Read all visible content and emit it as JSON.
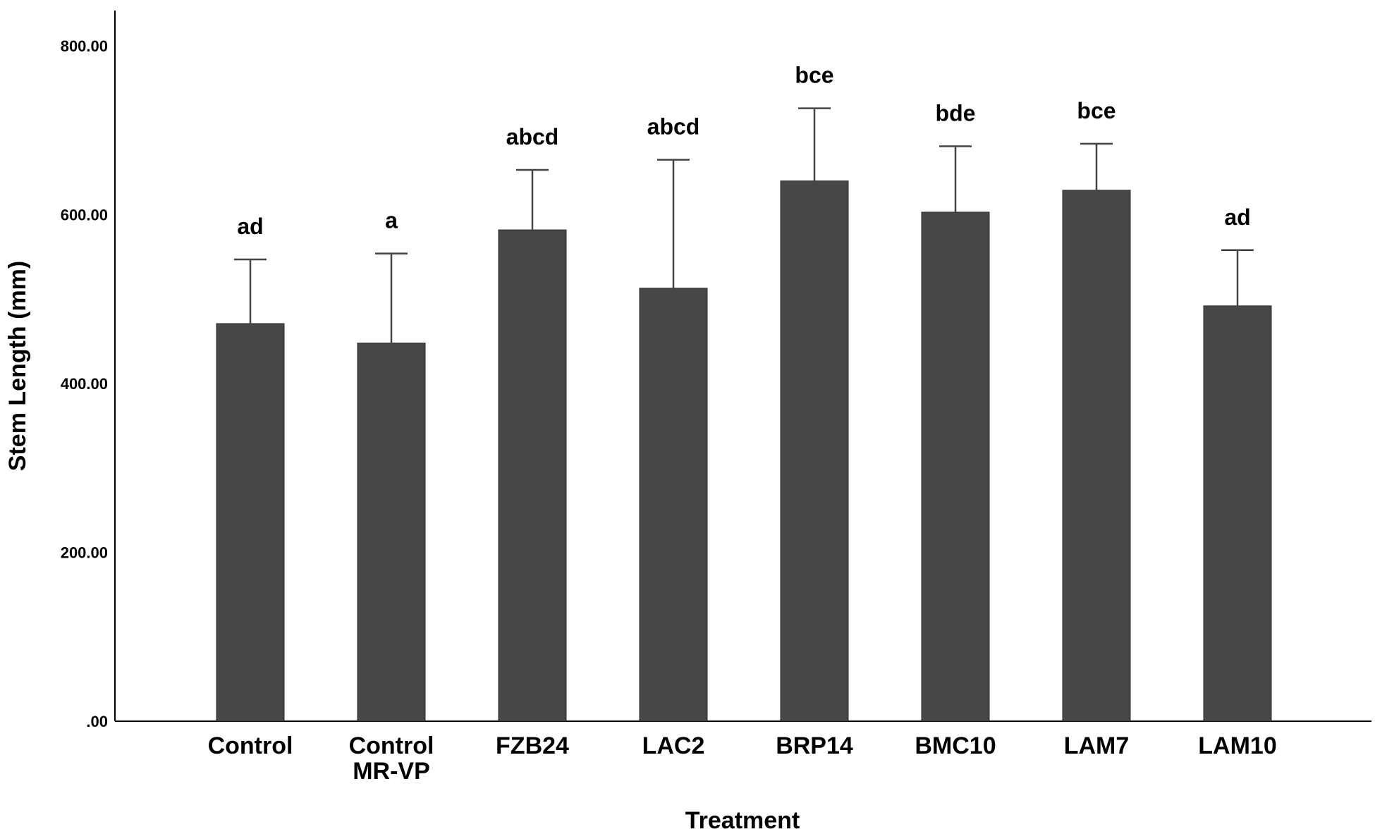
{
  "chart_data": {
    "type": "bar",
    "xlabel": "Treatment",
    "ylabel": "Stem Length (mm)",
    "ylim": [
      0,
      800
    ],
    "yticks": [
      ".00",
      "200.00",
      "400.00",
      "600.00",
      "800.00"
    ],
    "ytick_values": [
      0,
      200,
      400,
      600,
      800
    ],
    "grid": false,
    "bar_color": "#464749",
    "categories": [
      [
        "Control"
      ],
      [
        "Control",
        "MR-VP"
      ],
      [
        "FZB24"
      ],
      [
        "LAC2"
      ],
      [
        "BRP14"
      ],
      [
        "BMC10"
      ],
      [
        "LAM7"
      ],
      [
        "LAM10"
      ]
    ],
    "values": [
      471,
      448,
      582,
      513,
      640,
      603,
      629,
      492
    ],
    "error_upper": [
      547,
      554,
      653,
      665,
      726,
      681,
      684,
      558
    ],
    "annotations": [
      "ad",
      "a",
      "abcd",
      "abcd",
      "bce",
      "bde",
      "bce",
      "ad"
    ]
  }
}
